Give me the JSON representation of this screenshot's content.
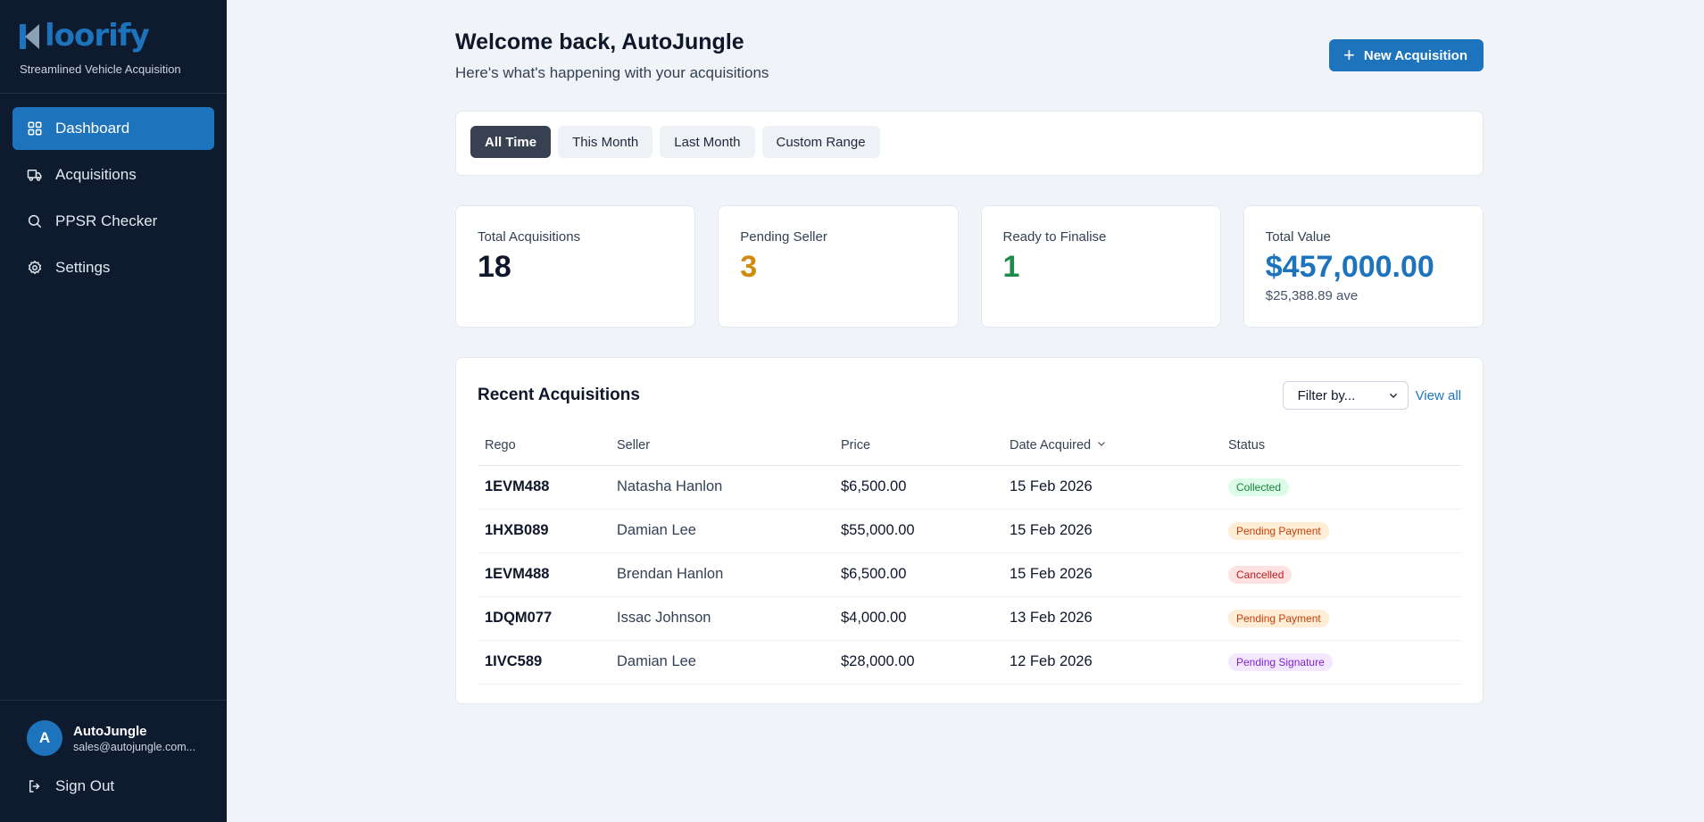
{
  "brand": {
    "logo_text": "loorify",
    "tagline": "Streamlined Vehicle Acquisition"
  },
  "nav": {
    "items": [
      {
        "label": "Dashboard",
        "icon": "grid-icon",
        "active": true
      },
      {
        "label": "Acquisitions",
        "icon": "truck-icon",
        "active": false
      },
      {
        "label": "PPSR Checker",
        "icon": "search-icon",
        "active": false
      },
      {
        "label": "Settings",
        "icon": "gear-icon",
        "active": false
      }
    ]
  },
  "user": {
    "initial": "A",
    "name": "AutoJungle",
    "email": "sales@autojungle.com..."
  },
  "signout_label": "Sign Out",
  "header": {
    "title": "Welcome back, AutoJungle",
    "subtitle": "Here's what's happening with your acquisitions",
    "new_button": "New Acquisition"
  },
  "ranges": {
    "all_time": "All Time",
    "this_month": "This Month",
    "last_month": "Last Month",
    "custom": "Custom Range"
  },
  "stats": {
    "total": {
      "label": "Total Acquisitions",
      "value": "18",
      "color": "#0f172a"
    },
    "pending": {
      "label": "Pending Seller",
      "value": "3",
      "color": "#d08a0e"
    },
    "ready": {
      "label": "Ready to Finalise",
      "value": "1",
      "color": "#1e8a4c"
    },
    "value": {
      "label": "Total Value",
      "value": "$457,000.00",
      "sub": "$25,388.89 ave",
      "color": "#1d74bd"
    }
  },
  "recent": {
    "title": "Recent Acquisitions",
    "filter_placeholder": "Filter by...",
    "view_all": "View all",
    "columns": {
      "rego": "Rego",
      "seller": "Seller",
      "price": "Price",
      "date": "Date Acquired",
      "status": "Status"
    },
    "rows": [
      {
        "rego": "1EVM488",
        "seller": "Natasha Hanlon",
        "price": "$6,500.00",
        "date": "15 Feb 2026",
        "status": "Collected"
      },
      {
        "rego": "1HXB089",
        "seller": "Damian Lee",
        "price": "$55,000.00",
        "date": "15 Feb 2026",
        "status": "Pending Payment"
      },
      {
        "rego": "1EVM488",
        "seller": "Brendan Hanlon",
        "price": "$6,500.00",
        "date": "15 Feb 2026",
        "status": "Cancelled"
      },
      {
        "rego": "1DQM077",
        "seller": "Issac Johnson",
        "price": "$4,000.00",
        "date": "13 Feb 2026",
        "status": "Pending Payment"
      },
      {
        "rego": "1IVC589",
        "seller": "Damian Lee",
        "price": "$28,000.00",
        "date": "12 Feb 2026",
        "status": "Pending Signature"
      }
    ]
  },
  "status_colors": {
    "Collected": {
      "bg": "#dcfce7",
      "fg": "#15803d"
    },
    "Pending Payment": {
      "bg": "#ffedd5",
      "fg": "#c2410c"
    },
    "Cancelled": {
      "bg": "#fee2e2",
      "fg": "#b91c1c"
    },
    "Pending Signature": {
      "bg": "#f3e8ff",
      "fg": "#7e22ce"
    }
  }
}
